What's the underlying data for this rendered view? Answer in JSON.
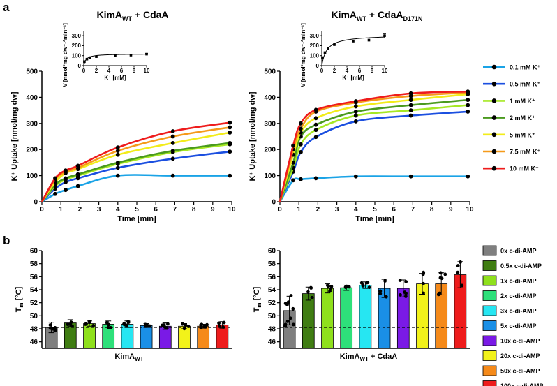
{
  "panel_labels": [
    "a",
    "b"
  ],
  "colors": {
    "uptake": [
      "#1aa3e6",
      "#1b4fe0",
      "#a6e824",
      "#4a9a1e",
      "#f2ec1a",
      "#f59a1a",
      "#ee1c1c"
    ],
    "tm": [
      "#7f7f7f",
      "#3f7d12",
      "#8fe01c",
      "#2ee07a",
      "#26e6f2",
      "#1a8fe6",
      "#7a1ae6",
      "#f2f21a",
      "#f58a1a",
      "#ee1c1c"
    ]
  },
  "chart_data": [
    {
      "type": "line",
      "title_main": "KimA",
      "title_sub": "WT",
      "title_rest": " + CdaA",
      "title_sub2": "",
      "xlabel": "Time [min]",
      "ylabel": "K⁺ Uptake [nmol/mg dw]",
      "xlim": [
        0,
        10
      ],
      "ylim": [
        0,
        500
      ],
      "xticks": [
        0,
        1,
        2,
        3,
        4,
        5,
        6,
        7,
        8,
        9,
        10
      ],
      "yticks": [
        0,
        100,
        200,
        300,
        400,
        500
      ],
      "x": [
        0,
        0.7,
        1.25,
        1.9,
        4,
        6.9,
        9.9
      ],
      "series": [
        {
          "name": "0.1 mM K⁺",
          "values": [
            0,
            30,
            45,
            60,
            100,
            100,
            100
          ]
        },
        {
          "name": "0.5 mM K⁺",
          "values": [
            0,
            50,
            75,
            90,
            130,
            165,
            192
          ]
        },
        {
          "name": "1 mM K⁺",
          "values": [
            0,
            60,
            85,
            100,
            145,
            190,
            220
          ]
        },
        {
          "name": "2 mM K⁺",
          "values": [
            0,
            65,
            90,
            105,
            150,
            195,
            225
          ]
        },
        {
          "name": "5 mM K⁺",
          "values": [
            0,
            75,
            110,
            125,
            180,
            225,
            265
          ]
        },
        {
          "name": "7.5 mM K⁺",
          "values": [
            0,
            85,
            115,
            130,
            195,
            250,
            285
          ]
        },
        {
          "name": "10 mM K⁺",
          "values": [
            0,
            90,
            120,
            138,
            208,
            270,
            303
          ]
        }
      ],
      "inset": {
        "xlabel": "K⁺ [mM]",
        "ylabel": "V [nmol*mg dw⁻¹*min⁻¹]",
        "xlim": [
          0,
          10
        ],
        "ylim": [
          0,
          350
        ],
        "xticks": [
          0,
          2,
          4,
          6,
          8,
          10
        ],
        "yticks": [
          0,
          100,
          200,
          300
        ],
        "x": [
          0.1,
          0.5,
          1,
          2,
          5,
          7.5,
          10
        ],
        "values": [
          40,
          65,
          80,
          90,
          100,
          105,
          115
        ],
        "errors": [
          0,
          0,
          0,
          0,
          8,
          8,
          8
        ]
      }
    },
    {
      "type": "line",
      "title_main": "KimA",
      "title_sub": "WT",
      "title_rest": " + CdaA",
      "title_sub2": "D171N",
      "xlabel": "Time [min]",
      "ylabel": "K⁺ Uptake [nmol/mg dw]",
      "xlim": [
        0,
        10
      ],
      "ylim": [
        0,
        500
      ],
      "xticks": [
        0,
        1,
        2,
        3,
        4,
        5,
        6,
        7,
        8,
        9,
        10
      ],
      "yticks": [
        0,
        100,
        200,
        300,
        400,
        500
      ],
      "x": [
        0,
        0.7,
        1.1,
        1.9,
        4,
        6.9,
        9.9
      ],
      "series": [
        {
          "name": "0.1 mM K⁺",
          "values": [
            0,
            82,
            86,
            90,
            97,
            97,
            97
          ]
        },
        {
          "name": "0.5 mM K⁺",
          "values": [
            0,
            115,
            190,
            248,
            308,
            330,
            345
          ]
        },
        {
          "name": "1 mM K⁺",
          "values": [
            0,
            130,
            220,
            275,
            330,
            350,
            370
          ]
        },
        {
          "name": "2 mM K⁺",
          "values": [
            0,
            150,
            250,
            295,
            345,
            370,
            390
          ]
        },
        {
          "name": "5 mM K⁺",
          "values": [
            0,
            180,
            265,
            320,
            365,
            390,
            412
          ]
        },
        {
          "name": "7.5 mM K⁺",
          "values": [
            0,
            200,
            280,
            345,
            380,
            405,
            418
          ]
        },
        {
          "name": "10 mM K⁺",
          "values": [
            0,
            215,
            300,
            352,
            385,
            415,
            422
          ]
        }
      ],
      "inset": {
        "xlabel": "K⁺ [mM]",
        "ylabel": "V [nmol*mg dw⁻¹*min⁻¹]",
        "xlim": [
          0,
          10
        ],
        "ylim": [
          0,
          350
        ],
        "xticks": [
          0,
          2,
          4,
          6,
          8,
          10
        ],
        "yticks": [
          0,
          100,
          200,
          300
        ],
        "x": [
          0.1,
          0.5,
          1,
          2,
          5,
          7.5,
          10
        ],
        "values": [
          80,
          130,
          170,
          210,
          245,
          255,
          300
        ],
        "errors": [
          0,
          0,
          8,
          8,
          10,
          20,
          25
        ]
      }
    },
    {
      "type": "bar",
      "xlabel_main": "KimA",
      "xlabel_sub": "WT",
      "xlabel_rest": "",
      "ylabel": "T",
      "ylabel_sub": "m",
      "ylabel_rest": " [°C]",
      "ylim": [
        45,
        60
      ],
      "yticks": [
        46,
        48,
        50,
        52,
        54,
        56,
        58,
        60
      ],
      "reference_line": 48.2,
      "categories": [
        "0x c-di-AMP",
        "0.5x c-di-AMP",
        "1x c-di-AMP",
        "2x c-di-AMP",
        "3x c-di-AMP",
        "5x c-di-AMP",
        "10x c-di-AMP",
        "20x c-di-AMP",
        "50x c-di-AMP",
        "100x c-di-AMP"
      ],
      "values": [
        48.2,
        48.9,
        48.8,
        48.7,
        48.7,
        48.5,
        48.4,
        48.4,
        48.4,
        48.6
      ],
      "errors": [
        0.8,
        0.5,
        0.4,
        0.5,
        0.5,
        0.3,
        0.5,
        0.4,
        0.3,
        0.5
      ]
    },
    {
      "type": "bar",
      "xlabel_main": "KimA",
      "xlabel_sub": "WT",
      "xlabel_rest": " + CdaA",
      "ylabel": "T",
      "ylabel_sub": "m",
      "ylabel_rest": " [°C]",
      "ylim": [
        45,
        60
      ],
      "yticks": [
        46,
        48,
        50,
        52,
        54,
        56,
        58,
        60
      ],
      "reference_line": 48.2,
      "categories": [
        "0x c-di-AMP",
        "0.5x c-di-AMP",
        "1x c-di-AMP",
        "2x c-di-AMP",
        "3x c-di-AMP",
        "5x c-di-AMP",
        "10x c-di-AMP",
        "20x c-di-AMP",
        "50x c-di-AMP",
        "100x c-di-AMP"
      ],
      "values": [
        50.8,
        53.4,
        54.2,
        54.3,
        54.7,
        54.2,
        54.2,
        54.9,
        54.9,
        56.3
      ],
      "errors": [
        2.2,
        1.0,
        0.7,
        0.4,
        0.5,
        1.4,
        1.3,
        1.6,
        1.7,
        2.0
      ]
    }
  ]
}
